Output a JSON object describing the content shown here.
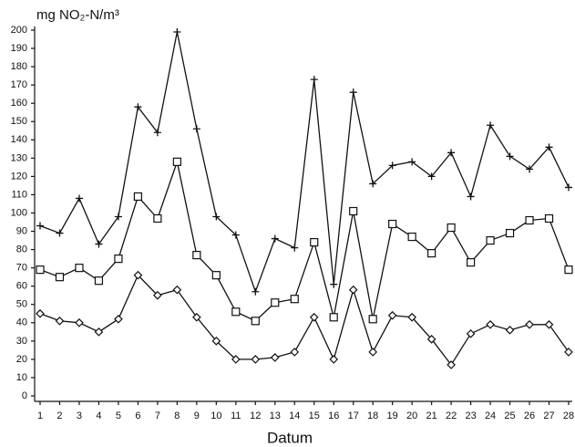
{
  "chart_data": {
    "type": "line",
    "y_label": "mg NO₂-N/m³",
    "x_label": "Datum",
    "categories": [
      1,
      2,
      3,
      4,
      5,
      6,
      7,
      8,
      9,
      10,
      11,
      12,
      13,
      14,
      15,
      16,
      17,
      18,
      19,
      20,
      21,
      22,
      23,
      24,
      25,
      26,
      27,
      28
    ],
    "series": [
      {
        "color": "#111111",
        "marker": "plus",
        "values": [
          93,
          89,
          108,
          83,
          98,
          158,
          144,
          199,
          146,
          98,
          88,
          57,
          86,
          81,
          173,
          61,
          166,
          116,
          126,
          128,
          120,
          133,
          109,
          148,
          131,
          124,
          136,
          114
        ]
      },
      {
        "color": "#111111",
        "marker": "square",
        "values": [
          69,
          65,
          70,
          63,
          75,
          109,
          97,
          128,
          77,
          66,
          46,
          41,
          51,
          53,
          84,
          43,
          101,
          42,
          94,
          87,
          78,
          92,
          73,
          85,
          89,
          96,
          97,
          69
        ]
      },
      {
        "color": "#111111",
        "marker": "diamond",
        "values": [
          45,
          41,
          40,
          35,
          42,
          66,
          55,
          58,
          43,
          30,
          20,
          20,
          21,
          24,
          43,
          20,
          58,
          24,
          44,
          43,
          31,
          17,
          34,
          39,
          36,
          39,
          39,
          24
        ]
      }
    ],
    "ylim": [
      0,
      200
    ],
    "yticks": [
      0,
      10,
      20,
      30,
      40,
      50,
      60,
      70,
      80,
      90,
      100,
      110,
      120,
      130,
      140,
      150,
      160,
      170,
      180,
      190,
      200
    ]
  }
}
